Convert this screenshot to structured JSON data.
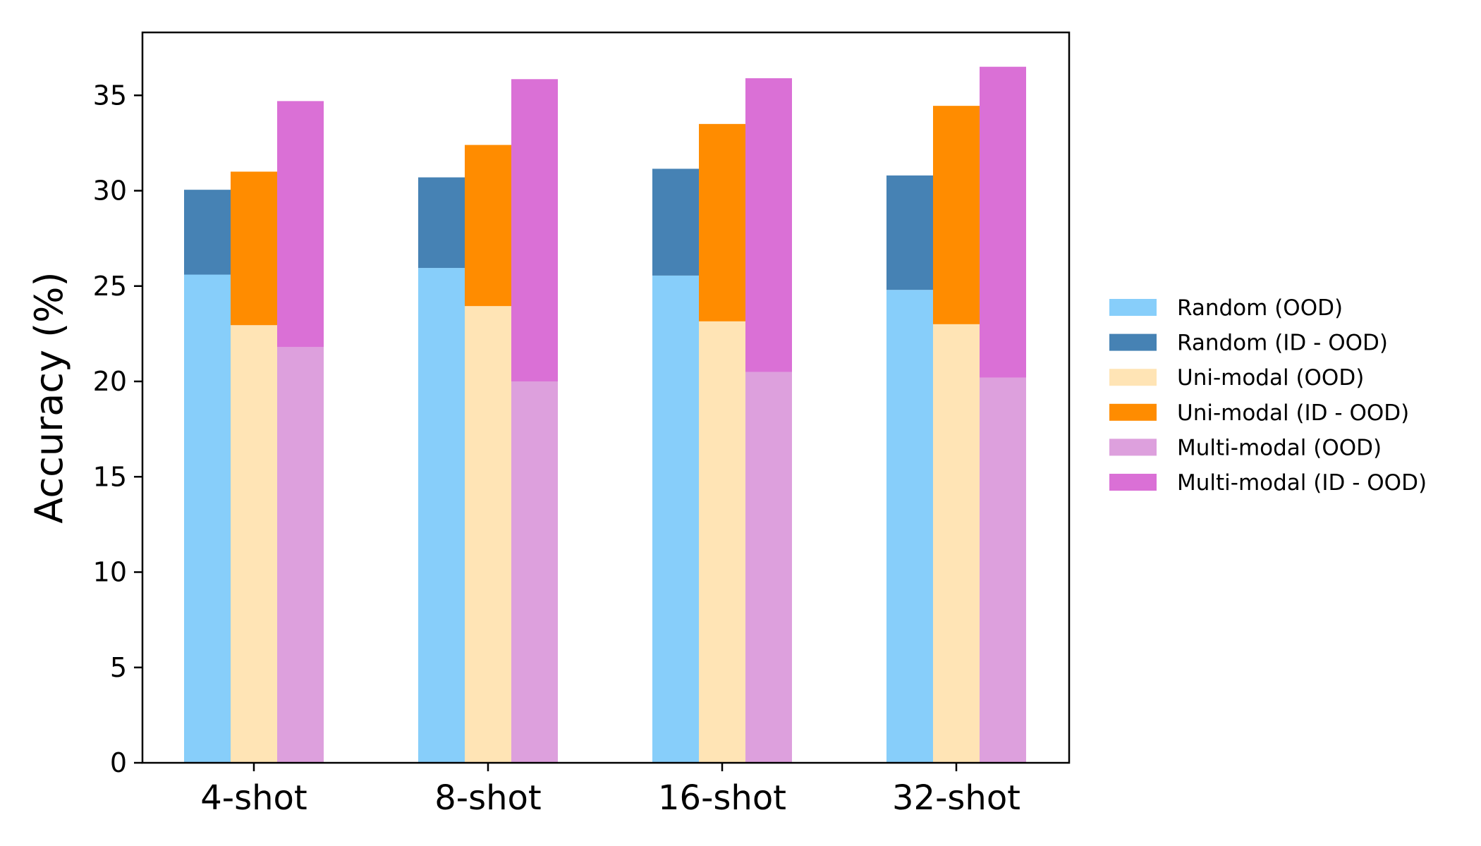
{
  "chart_data": {
    "type": "bar",
    "stacked": true,
    "title": "",
    "xlabel": "",
    "ylabel": "Accuracy (%)",
    "ylim": [
      0,
      38.3
    ],
    "yticks": [
      0,
      5,
      10,
      15,
      20,
      25,
      30,
      35
    ],
    "categories": [
      "4-shot",
      "8-shot",
      "16-shot",
      "32-shot"
    ],
    "grid": false,
    "legend_position": "right",
    "groups": [
      {
        "method": "Random",
        "segments": [
          {
            "name": "Random (OOD)",
            "color": "#87CEFA",
            "values": [
              25.6,
              25.95,
              25.55,
              24.8
            ]
          },
          {
            "name": "Random (ID - OOD)",
            "color": "#4682B4",
            "values": [
              4.45,
              4.75,
              5.6,
              6.0
            ]
          }
        ]
      },
      {
        "method": "Uni-modal",
        "segments": [
          {
            "name": "Uni-modal (OOD)",
            "color": "#FFE4B5",
            "values": [
              22.95,
              23.95,
              23.15,
              23.0
            ]
          },
          {
            "name": "Uni-modal (ID - OOD)",
            "color": "#FF8C00",
            "values": [
              8.05,
              8.45,
              10.35,
              11.45
            ]
          }
        ]
      },
      {
        "method": "Multi-modal",
        "segments": [
          {
            "name": "Multi-modal (OOD)",
            "color": "#DDA0DD",
            "values": [
              21.8,
              20.0,
              20.5,
              20.2
            ]
          },
          {
            "name": "Multi-modal (ID - OOD)",
            "color": "#DA70D6",
            "values": [
              12.9,
              15.85,
              15.4,
              16.3
            ]
          }
        ]
      }
    ],
    "legend": [
      {
        "label": "Random (OOD)",
        "color": "#87CEFA"
      },
      {
        "label": "Random (ID - OOD)",
        "color": "#4682B4"
      },
      {
        "label": "Uni-modal (OOD)",
        "color": "#FFE4B5"
      },
      {
        "label": "Uni-modal (ID - OOD)",
        "color": "#FF8C00"
      },
      {
        "label": "Multi-modal (OOD)",
        "color": "#DDA0DD"
      },
      {
        "label": "Multi-modal (ID - OOD)",
        "color": "#DA70D6"
      }
    ]
  }
}
